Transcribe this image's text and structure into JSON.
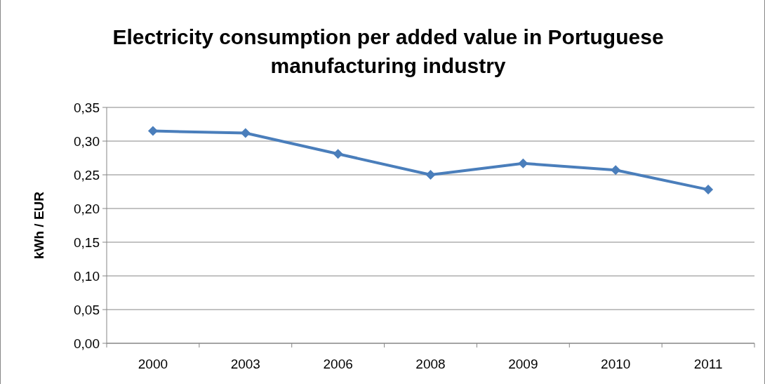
{
  "chart_data": {
    "type": "line",
    "title": "Electricity consumption per added value in Portuguese manufacturing industry",
    "ylabel": "kWh / EUR",
    "categories": [
      "2000",
      "2003",
      "2006",
      "2008",
      "2009",
      "2010",
      "2011"
    ],
    "series": [
      {
        "color": "#4a7ebb",
        "values": [
          0.315,
          0.312,
          0.281,
          0.25,
          0.267,
          0.257,
          0.228
        ]
      }
    ],
    "ylim": [
      0,
      0.35
    ],
    "yticks": [
      {
        "value": 0,
        "label": "0,00"
      },
      {
        "value": 0.05,
        "label": "0,05"
      },
      {
        "value": 0.1,
        "label": "0,10"
      },
      {
        "value": 0.15,
        "label": "0,15"
      },
      {
        "value": 0.2,
        "label": "0,20"
      },
      {
        "value": 0.25,
        "label": "0,25"
      },
      {
        "value": 0.3,
        "label": "0,30"
      },
      {
        "value": 0.35,
        "label": "0,35"
      }
    ],
    "grid": "y",
    "marker": "diamond",
    "line_style": "solid"
  }
}
